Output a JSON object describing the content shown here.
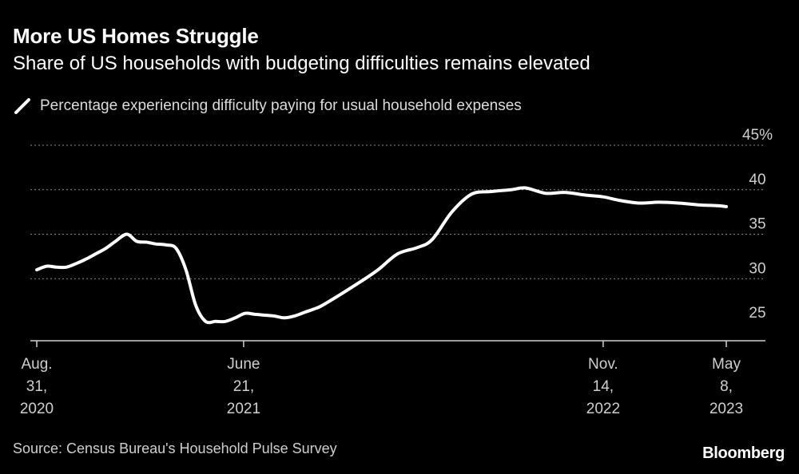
{
  "header": {
    "title": "More US Homes Struggle",
    "subtitle": "Share of US households with budgeting difficulties remains elevated"
  },
  "legend": {
    "icon": "line-swatch-icon",
    "label": "Percentage experiencing difficulty paying for usual household expenses"
  },
  "footer": {
    "source": "Source: Census Bureau's Household Pulse Survey",
    "brand": "Bloomberg"
  },
  "colors": {
    "background": "#000000",
    "line": "#ffffff",
    "grid": "#8a8a8a",
    "text": "#ffffff",
    "muted_text": "#cfcfcf"
  },
  "chart_data": {
    "type": "line",
    "title": "More US Homes Struggle",
    "subtitle": "Share of US households with budgeting difficulties remains elevated",
    "xlabel": "",
    "ylabel": "",
    "ylim": [
      25,
      45
    ],
    "y_ticks": [
      {
        "value": 45,
        "label": "45%"
      },
      {
        "value": 40,
        "label": "40"
      },
      {
        "value": 35,
        "label": "35"
      },
      {
        "value": 30,
        "label": "30"
      },
      {
        "value": 25,
        "label": "25"
      }
    ],
    "xlim": [
      "2020-08-31",
      "2023-05-08"
    ],
    "x_ticks": [
      {
        "date": "2020-08-31",
        "lines": [
          "Aug.",
          "31,",
          "2020"
        ]
      },
      {
        "date": "2021-06-21",
        "lines": [
          "June",
          "21,",
          "2021"
        ]
      },
      {
        "date": "2022-11-14",
        "lines": [
          "Nov.",
          "14,",
          "2022"
        ]
      },
      {
        "date": "2023-05-08",
        "lines": [
          "May",
          "8,",
          "2023"
        ]
      }
    ],
    "grid": true,
    "series": [
      {
        "name": "Percentage experiencing difficulty paying for usual household expenses",
        "x": [
          "2020-08-31",
          "2020-09-14",
          "2020-09-28",
          "2020-10-12",
          "2020-10-26",
          "2020-11-09",
          "2020-11-23",
          "2020-12-07",
          "2020-12-21",
          "2021-01-06",
          "2021-01-20",
          "2021-02-03",
          "2021-02-17",
          "2021-03-03",
          "2021-03-17",
          "2021-03-31",
          "2021-04-14",
          "2021-04-28",
          "2021-05-12",
          "2021-05-26",
          "2021-06-09",
          "2021-06-23",
          "2021-07-07",
          "2021-07-21",
          "2021-08-04",
          "2021-08-18",
          "2021-09-01",
          "2021-09-15",
          "2021-09-29",
          "2021-10-13",
          "2021-12-01",
          "2021-12-29",
          "2022-01-26",
          "2022-02-23",
          "2022-03-16",
          "2022-04-13",
          "2022-05-11",
          "2022-06-08",
          "2022-07-06",
          "2022-07-27",
          "2022-08-24",
          "2022-09-21",
          "2022-10-19",
          "2022-11-14",
          "2022-12-07",
          "2023-01-04",
          "2023-02-01",
          "2023-03-01",
          "2023-03-29",
          "2023-04-26",
          "2023-05-08"
        ],
        "values": [
          31.0,
          31.4,
          31.3,
          31.3,
          31.7,
          32.2,
          32.8,
          33.4,
          34.2,
          35.0,
          34.2,
          34.1,
          33.9,
          33.8,
          33.4,
          31.0,
          27.0,
          25.2,
          25.2,
          25.2,
          25.6,
          26.1,
          26.0,
          25.9,
          25.8,
          25.6,
          25.8,
          26.2,
          26.6,
          27.1,
          29.5,
          31.0,
          32.8,
          33.5,
          34.4,
          37.5,
          39.5,
          39.8,
          40.0,
          40.2,
          39.6,
          39.7,
          39.4,
          39.2,
          38.8,
          38.5,
          38.6,
          38.5,
          38.3,
          38.2,
          38.1
        ]
      }
    ]
  }
}
